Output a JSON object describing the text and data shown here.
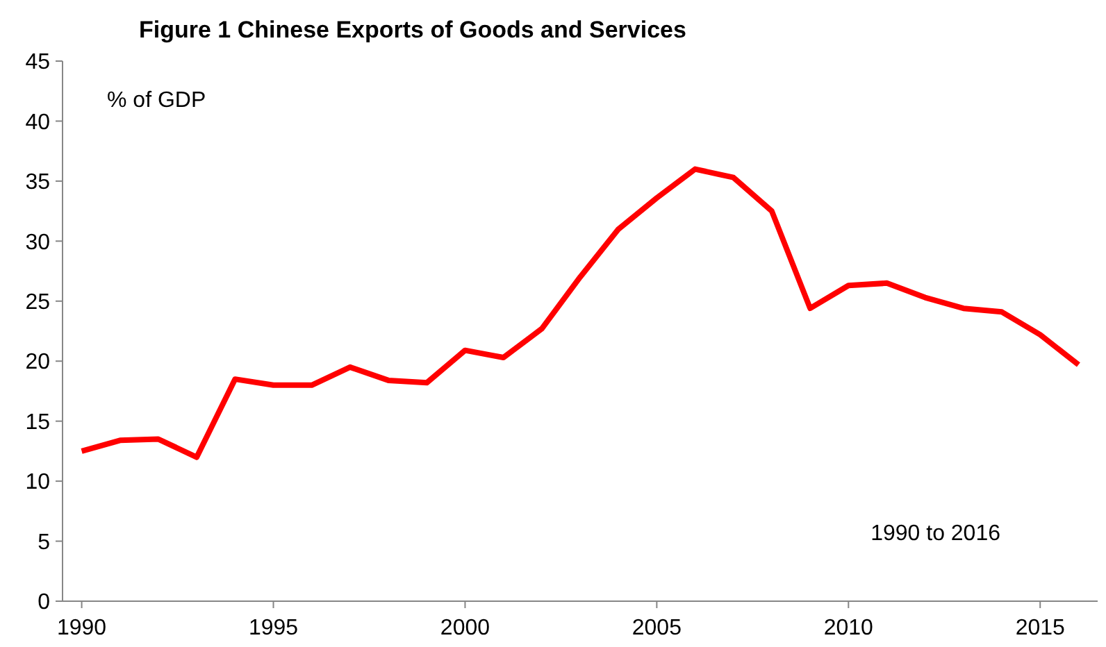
{
  "chart_data": {
    "type": "line",
    "title": "Figure 1 Chinese Exports of Goods and Services",
    "annotations": [
      "% of GDP",
      "1990 to 2016"
    ],
    "categories": [
      "1990",
      null,
      null,
      null,
      null,
      "1995",
      null,
      null,
      null,
      null,
      "2000",
      null,
      null,
      null,
      null,
      "2005",
      null,
      null,
      null,
      null,
      "2010",
      null,
      null,
      null,
      null,
      "2015",
      null
    ],
    "series": [
      {
        "color": "#ff0000",
        "values": [
          12.5,
          13.4,
          13.5,
          12.0,
          18.5,
          18.0,
          18.0,
          19.5,
          18.4,
          18.2,
          20.9,
          20.3,
          22.7,
          27.0,
          31.0,
          33.6,
          36.0,
          35.3,
          32.5,
          24.4,
          26.3,
          26.5,
          25.3,
          24.4,
          24.1,
          22.2,
          19.7
        ]
      }
    ],
    "ylim": [
      0,
      45
    ],
    "yticks": [
      0,
      5,
      10,
      15,
      20,
      25,
      30,
      35,
      40,
      45
    ],
    "grid": false,
    "marker": "none",
    "line_style": "solid"
  }
}
